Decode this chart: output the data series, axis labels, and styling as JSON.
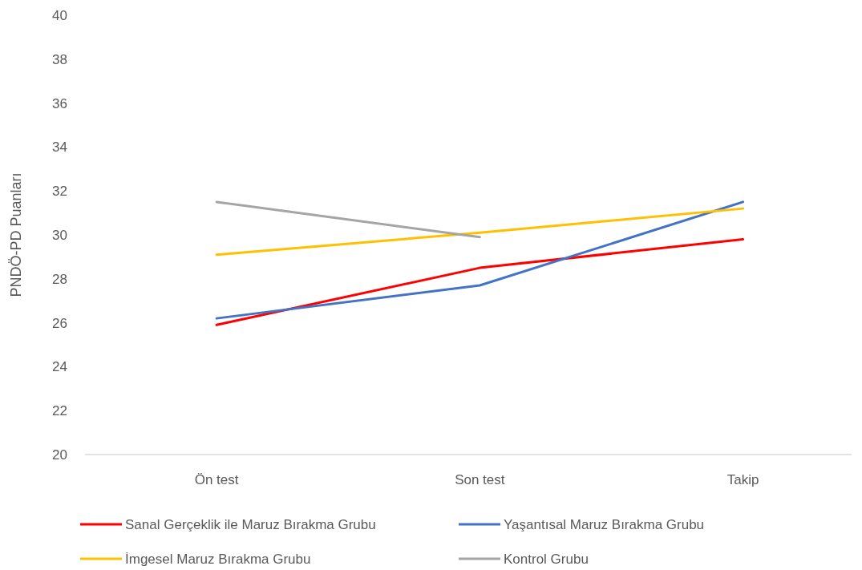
{
  "chart_data": {
    "type": "line",
    "ylabel": "PNDÖ-PD Puanları",
    "categories": [
      "Ön test",
      "Son test",
      "Takip"
    ],
    "series": [
      {
        "name": "Sanal Gerçeklik ile Maruz Bırakma Grubu",
        "color": "#ff0000",
        "values": [
          25.9,
          28.5,
          29.8
        ]
      },
      {
        "name": "Yaşantısal Maruz Bırakma Grubu",
        "color": "#4472c4",
        "values": [
          26.2,
          27.7,
          31.5
        ]
      },
      {
        "name": "İmgesel Maruz Bırakma Grubu",
        "color": "#ffc000",
        "values": [
          29.1,
          30.1,
          31.2
        ]
      },
      {
        "name": "Kontrol Grubu",
        "color": "#a5a5a5",
        "values": [
          31.5,
          29.9,
          null
        ]
      }
    ],
    "ylim": [
      20,
      40
    ],
    "yticks": [
      20,
      22,
      24,
      26,
      28,
      30,
      32,
      34,
      36,
      38,
      40
    ],
    "grid": false,
    "legend": "bottom",
    "marker": "none",
    "line_style": "solid"
  }
}
